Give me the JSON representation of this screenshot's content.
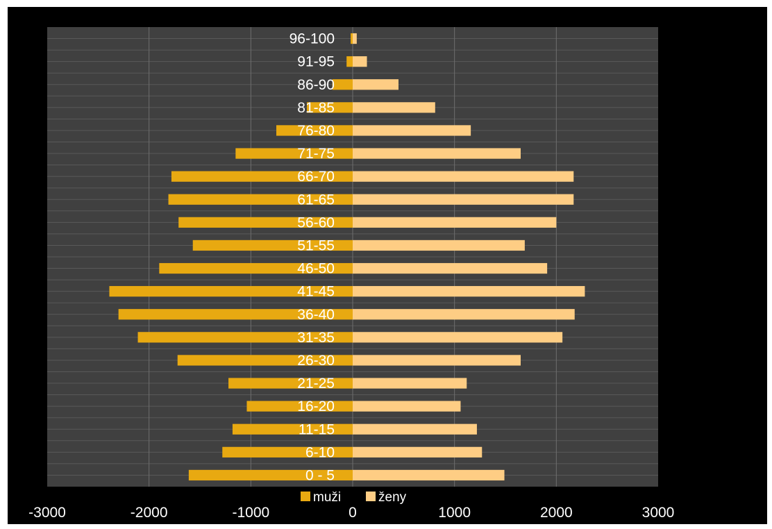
{
  "chart_data": {
    "type": "bar",
    "orientation": "horizontal",
    "layout": "population-pyramid",
    "categories": [
      "0 - 5",
      "6-10",
      "11-15",
      "16-20",
      "21-25",
      "26-30",
      "31-35",
      "36-40",
      "41-45",
      "46-50",
      "51-55",
      "56-60",
      "61-65",
      "66-70",
      "71-75",
      "76-80",
      "81-85",
      "86-90",
      "91-95",
      "96-100"
    ],
    "series": [
      {
        "name": "muži",
        "color": "#e8a911",
        "values": [
          -1610,
          -1280,
          -1180,
          -1040,
          -1220,
          -1720,
          -2110,
          -2300,
          -2390,
          -1900,
          -1570,
          -1710,
          -1810,
          -1780,
          -1150,
          -750,
          -450,
          -200,
          -60,
          -20
        ]
      },
      {
        "name": "ženy",
        "color": "#fecd84",
        "values": [
          1490,
          1270,
          1220,
          1060,
          1120,
          1650,
          2060,
          2180,
          2280,
          1910,
          1690,
          2000,
          2170,
          2170,
          1650,
          1160,
          810,
          450,
          140,
          40
        ]
      }
    ],
    "x_ticks": [
      "-3000",
      "-2000",
      "-1000",
      "0",
      "1000",
      "2000",
      "3000"
    ],
    "xlim": [
      -3000,
      3000
    ],
    "grid": "vertical major",
    "legend_position": "bottom",
    "plot_background": "#404040",
    "background": "#000000"
  }
}
